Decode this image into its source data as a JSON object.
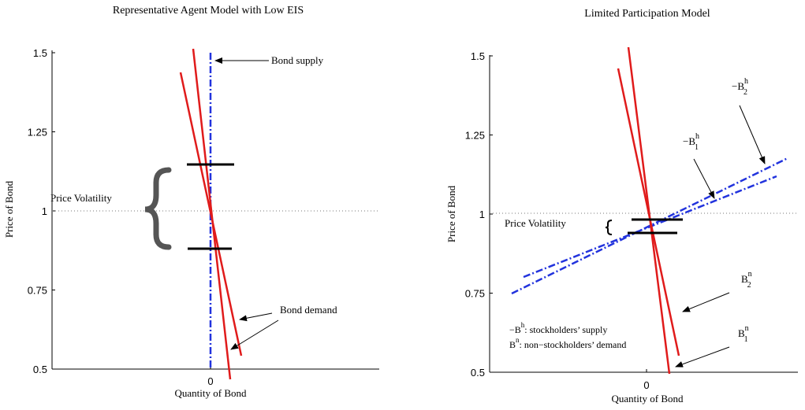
{
  "chart_data": [
    {
      "type": "line",
      "title": "Representative Agent Model with Low EIS",
      "xlabel": "Quantity of Bond",
      "ylabel": "Price of Bond",
      "ylim": [
        0.5,
        1.5
      ],
      "yticks": [
        "0.5",
        "0.75",
        "1",
        "1.25",
        "1.5"
      ],
      "xticks": [
        "0"
      ],
      "grid": false,
      "reference_line": {
        "y": 1,
        "style": "dotted"
      },
      "series": [
        {
          "name": "Bond supply",
          "style": "blue dash-dot",
          "points": [
            [
              0,
              0.5
            ],
            [
              0,
              1.5
            ]
          ]
        },
        {
          "name": "Bond demand",
          "style": "red solid",
          "points": [
            [
              -0.09,
              1.44
            ],
            [
              0.1,
              0.54
            ]
          ]
        },
        {
          "name": "Bond demand",
          "style": "red solid",
          "points": [
            [
              -0.05,
              1.51
            ],
            [
              0.06,
              0.47
            ]
          ]
        }
      ],
      "price_marks": [
        1.145,
        0.875
      ],
      "annotations": {
        "supply_label": "Bond supply",
        "demand_label": "Bond demand",
        "volatility_label": "Price Volatility"
      }
    },
    {
      "type": "line",
      "title": "Limited Participation Model",
      "xlabel": "Quantity of Bond",
      "ylabel": "Price of Bond",
      "ylim": [
        0.5,
        1.5
      ],
      "yticks": [
        "0.5",
        "0.75",
        "1",
        "1.25",
        "1.5"
      ],
      "xticks": [
        "0"
      ],
      "grid": false,
      "reference_line": {
        "y": 1,
        "style": "dotted"
      },
      "series": [
        {
          "name": "−B1h",
          "style": "blue dash-dot",
          "points": [
            [
              -0.4,
              0.8
            ],
            [
              0.42,
              1.13
            ]
          ]
        },
        {
          "name": "−B2h",
          "style": "blue dash-dot",
          "points": [
            [
              -0.42,
              0.75
            ],
            [
              0.46,
              1.17
            ]
          ]
        },
        {
          "name": "B2n",
          "style": "red solid",
          "points": [
            [
              -0.08,
              1.46
            ],
            [
              0.1,
              0.55
            ]
          ]
        },
        {
          "name": "B1n",
          "style": "red solid",
          "points": [
            [
              -0.06,
              1.53
            ],
            [
              0.07,
              0.49
            ]
          ]
        }
      ],
      "price_marks": [
        0.98,
        0.94
      ],
      "annotations": {
        "volatility_label": "Price Volatility",
        "neg_B2h": {
          "prefix": "−B",
          "sup": "h",
          "sub": "2"
        },
        "neg_B1h": {
          "prefix": "−B",
          "sup": "h",
          "sub": "1"
        },
        "B2n": {
          "prefix": "B",
          "sup": "n",
          "sub": "2"
        },
        "B1n": {
          "prefix": "B",
          "sup": "n",
          "sub": "1"
        },
        "legend_line1": {
          "prefix": "−B",
          "sup": "h",
          "rest": ": stockholders’ supply"
        },
        "legend_line2": {
          "prefix": "B",
          "sup": "n",
          "rest": ": non−stockholders’ demand"
        }
      }
    }
  ]
}
